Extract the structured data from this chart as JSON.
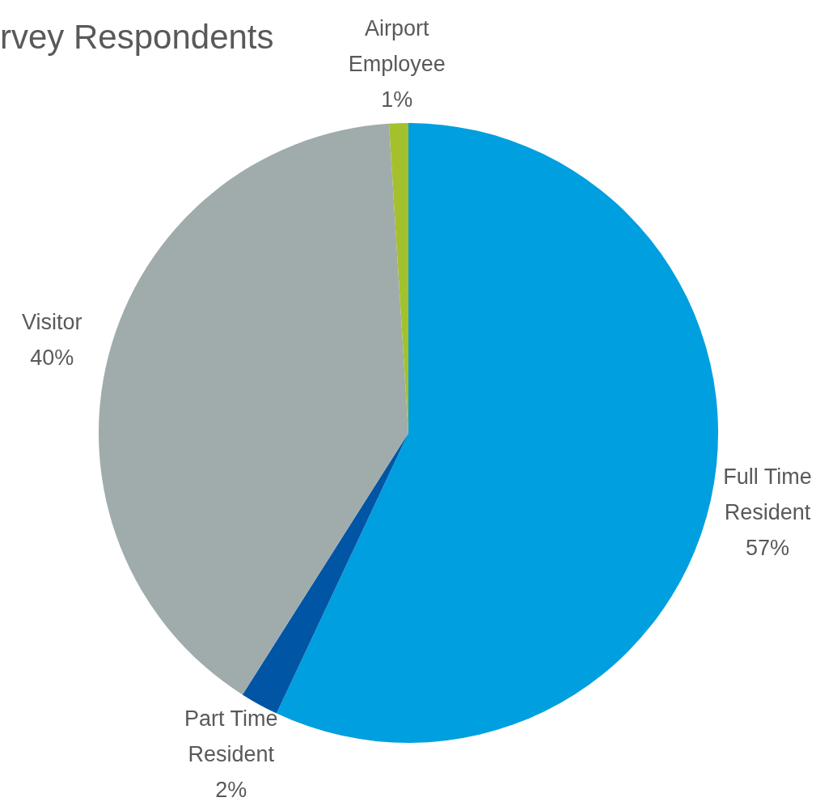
{
  "chart_data": {
    "type": "pie",
    "title": "rvey Respondents",
    "categories": [
      "Full Time Resident",
      "Part Time Resident",
      "Visitor",
      "Airport Employee"
    ],
    "values": [
      57,
      2,
      40,
      1
    ],
    "value_labels": [
      "57%",
      "2%",
      "40%",
      "1%"
    ],
    "colors": [
      "#009fdf",
      "#0055a5",
      "#a0acab",
      "#a5c02d"
    ],
    "legend": false
  }
}
